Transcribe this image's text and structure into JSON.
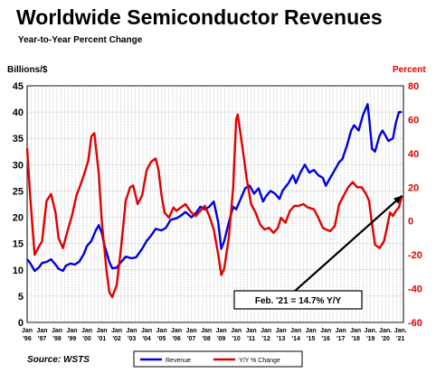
{
  "chart_data": {
    "type": "line",
    "title": "Worldwide Semiconductor Revenues",
    "subtitle": "Year-to-Year Percent Change",
    "ylabel_left": "Billions/$",
    "ylabel_right": "Percent",
    "source": "Source: WSTS",
    "left_axis": {
      "min": 0,
      "max": 45,
      "ticks": [
        0,
        5,
        10,
        15,
        20,
        25,
        30,
        35,
        40,
        45
      ]
    },
    "right_axis": {
      "min": -60,
      "max": 80,
      "ticks": [
        -60,
        -40,
        -20,
        0,
        20,
        40,
        60,
        80
      ]
    },
    "x_range": [
      1996.0,
      2021.2
    ],
    "grid": true,
    "legend_position": "bottom-center",
    "xtick_labels": [
      {
        "x": 1996.0,
        "month": "Jan",
        "year": "'96"
      },
      {
        "x": 1997.0,
        "month": "Jan",
        "year": "'97"
      },
      {
        "x": 1998.0,
        "month": "Jan",
        "year": "'98"
      },
      {
        "x": 1999.0,
        "month": "Jan",
        "year": "'99"
      },
      {
        "x": 2000.0,
        "month": "Jan",
        "year": "'00"
      },
      {
        "x": 2001.0,
        "month": "Jan",
        "year": "'01"
      },
      {
        "x": 2002.0,
        "month": "Jan",
        "year": "'02"
      },
      {
        "x": 2003.0,
        "month": "Jan",
        "year": "'03"
      },
      {
        "x": 2004.0,
        "month": "Jan",
        "year": "'04"
      },
      {
        "x": 2005.0,
        "month": "Jan",
        "year": "'05"
      },
      {
        "x": 2006.0,
        "month": "Jan",
        "year": "'06"
      },
      {
        "x": 2007.0,
        "month": "Jan",
        "year": "'07"
      },
      {
        "x": 2008.0,
        "month": "Jan",
        "year": "'08"
      },
      {
        "x": 2009.0,
        "month": "Jan",
        "year": "'09"
      },
      {
        "x": 2010.0,
        "month": "Jan",
        "year": "'10"
      },
      {
        "x": 2011.0,
        "month": "Jan",
        "year": "'11"
      },
      {
        "x": 2012.0,
        "month": "Jan",
        "year": "'12"
      },
      {
        "x": 2013.0,
        "month": "Jan",
        "year": "'13"
      },
      {
        "x": 2014.0,
        "month": "Jan",
        "year": "'14"
      },
      {
        "x": 2015.0,
        "month": "Jan",
        "year": "'15"
      },
      {
        "x": 2016.0,
        "month": "Jan",
        "year": "'16"
      },
      {
        "x": 2017.0,
        "month": "Jan",
        "year": "'17"
      },
      {
        "x": 2018.0,
        "month": "Jan",
        "year": "'18"
      },
      {
        "x": 2019.0,
        "month": "Jan.",
        "year": "'19"
      },
      {
        "x": 2020.0,
        "month": "Jan.",
        "year": "'20"
      },
      {
        "x": 2021.0,
        "month": "Jan.",
        "year": "'21"
      }
    ],
    "series": [
      {
        "name": "Revenue",
        "axis": "left",
        "color": "#0000e0",
        "points": [
          [
            1996.0,
            12
          ],
          [
            1996.2,
            11.3
          ],
          [
            1996.5,
            9.8
          ],
          [
            1996.8,
            10.5
          ],
          [
            1997.0,
            11.3
          ],
          [
            1997.3,
            11.5
          ],
          [
            1997.6,
            12.0
          ],
          [
            1997.9,
            11.0
          ],
          [
            1998.1,
            10.2
          ],
          [
            1998.4,
            9.8
          ],
          [
            1998.6,
            10.8
          ],
          [
            1998.9,
            11.2
          ],
          [
            1999.2,
            11.0
          ],
          [
            1999.5,
            11.6
          ],
          [
            1999.8,
            13.0
          ],
          [
            2000.0,
            14.5
          ],
          [
            2000.3,
            15.5
          ],
          [
            2000.6,
            17.5
          ],
          [
            2000.8,
            18.5
          ],
          [
            2001.0,
            17.0
          ],
          [
            2001.2,
            14.5
          ],
          [
            2001.5,
            11.5
          ],
          [
            2001.7,
            10.3
          ],
          [
            2002.0,
            10.4
          ],
          [
            2002.3,
            11.5
          ],
          [
            2002.6,
            12.5
          ],
          [
            2003.0,
            12.2
          ],
          [
            2003.3,
            12.4
          ],
          [
            2003.7,
            14.0
          ],
          [
            2004.0,
            15.5
          ],
          [
            2004.3,
            16.5
          ],
          [
            2004.6,
            17.8
          ],
          [
            2005.0,
            17.5
          ],
          [
            2005.3,
            18.0
          ],
          [
            2005.6,
            19.5
          ],
          [
            2006.0,
            19.8
          ],
          [
            2006.3,
            20.3
          ],
          [
            2006.6,
            21.0
          ],
          [
            2007.0,
            20.0
          ],
          [
            2007.3,
            20.8
          ],
          [
            2007.6,
            22.0
          ],
          [
            2007.9,
            21.5
          ],
          [
            2008.2,
            22.0
          ],
          [
            2008.5,
            23.0
          ],
          [
            2008.8,
            19.0
          ],
          [
            2009.0,
            14.0
          ],
          [
            2009.2,
            15.5
          ],
          [
            2009.5,
            19.0
          ],
          [
            2009.8,
            22.0
          ],
          [
            2010.0,
            21.5
          ],
          [
            2010.3,
            23.5
          ],
          [
            2010.6,
            25.5
          ],
          [
            2010.9,
            26.0
          ],
          [
            2011.2,
            24.5
          ],
          [
            2011.5,
            25.5
          ],
          [
            2011.8,
            23.0
          ],
          [
            2012.0,
            24.0
          ],
          [
            2012.3,
            25.0
          ],
          [
            2012.6,
            24.5
          ],
          [
            2012.9,
            23.5
          ],
          [
            2013.1,
            25.0
          ],
          [
            2013.5,
            26.5
          ],
          [
            2013.8,
            28.0
          ],
          [
            2014.0,
            26.5
          ],
          [
            2014.3,
            28.5
          ],
          [
            2014.6,
            30.0
          ],
          [
            2014.9,
            28.5
          ],
          [
            2015.2,
            29.0
          ],
          [
            2015.5,
            28.0
          ],
          [
            2015.8,
            27.5
          ],
          [
            2016.0,
            26.0
          ],
          [
            2016.3,
            27.5
          ],
          [
            2016.6,
            29.0
          ],
          [
            2016.9,
            30.5
          ],
          [
            2017.1,
            31.0
          ],
          [
            2017.4,
            33.5
          ],
          [
            2017.7,
            36.5
          ],
          [
            2017.9,
            37.5
          ],
          [
            2018.2,
            36.5
          ],
          [
            2018.5,
            39.5
          ],
          [
            2018.8,
            41.5
          ],
          [
            2018.9,
            39.0
          ],
          [
            2019.1,
            33.0
          ],
          [
            2019.3,
            32.5
          ],
          [
            2019.6,
            35.5
          ],
          [
            2019.8,
            36.5
          ],
          [
            2020.0,
            35.5
          ],
          [
            2020.2,
            34.5
          ],
          [
            2020.5,
            35.0
          ],
          [
            2020.7,
            38.0
          ],
          [
            2020.9,
            40.0
          ],
          [
            2021.1,
            40.0
          ]
        ]
      },
      {
        "name": "Y/Y % Change",
        "axis": "right",
        "color": "#e00000",
        "points": [
          [
            1996.0,
            43
          ],
          [
            1996.2,
            15
          ],
          [
            1996.5,
            -20
          ],
          [
            1996.8,
            -15
          ],
          [
            1997.0,
            -12
          ],
          [
            1997.3,
            12
          ],
          [
            1997.6,
            16
          ],
          [
            1997.9,
            5
          ],
          [
            1998.1,
            -10
          ],
          [
            1998.4,
            -16
          ],
          [
            1998.7,
            -6
          ],
          [
            1999.0,
            3
          ],
          [
            1999.3,
            15
          ],
          [
            1999.6,
            22
          ],
          [
            1999.9,
            30
          ],
          [
            2000.1,
            36
          ],
          [
            2000.3,
            50
          ],
          [
            2000.5,
            52
          ],
          [
            2000.8,
            28
          ],
          [
            2001.0,
            0
          ],
          [
            2001.3,
            -28
          ],
          [
            2001.5,
            -42
          ],
          [
            2001.7,
            -45
          ],
          [
            2002.0,
            -38
          ],
          [
            2002.3,
            -15
          ],
          [
            2002.6,
            12
          ],
          [
            2002.9,
            20
          ],
          [
            2003.1,
            21
          ],
          [
            2003.4,
            10
          ],
          [
            2003.7,
            15
          ],
          [
            2004.0,
            30
          ],
          [
            2004.3,
            35
          ],
          [
            2004.6,
            37
          ],
          [
            2004.8,
            30
          ],
          [
            2005.0,
            15
          ],
          [
            2005.2,
            5
          ],
          [
            2005.5,
            2
          ],
          [
            2005.8,
            8
          ],
          [
            2006.0,
            6
          ],
          [
            2006.3,
            8
          ],
          [
            2006.6,
            10
          ],
          [
            2007.0,
            5
          ],
          [
            2007.3,
            3
          ],
          [
            2007.6,
            6
          ],
          [
            2007.9,
            9
          ],
          [
            2008.2,
            3
          ],
          [
            2008.5,
            -5
          ],
          [
            2008.8,
            -20
          ],
          [
            2009.0,
            -32
          ],
          [
            2009.2,
            -28
          ],
          [
            2009.5,
            -10
          ],
          [
            2009.8,
            20
          ],
          [
            2010.0,
            60
          ],
          [
            2010.1,
            63
          ],
          [
            2010.4,
            45
          ],
          [
            2010.7,
            25
          ],
          [
            2011.0,
            10
          ],
          [
            2011.3,
            5
          ],
          [
            2011.6,
            -2
          ],
          [
            2011.9,
            -5
          ],
          [
            2012.2,
            -4
          ],
          [
            2012.5,
            -7
          ],
          [
            2012.8,
            -4
          ],
          [
            2013.0,
            2
          ],
          [
            2013.3,
            -1
          ],
          [
            2013.6,
            6
          ],
          [
            2013.9,
            9
          ],
          [
            2014.2,
            9
          ],
          [
            2014.5,
            10
          ],
          [
            2014.8,
            8
          ],
          [
            2015.2,
            7
          ],
          [
            2015.5,
            2
          ],
          [
            2015.8,
            -4
          ],
          [
            2016.0,
            -5
          ],
          [
            2016.3,
            -6
          ],
          [
            2016.6,
            -3
          ],
          [
            2016.9,
            10
          ],
          [
            2017.2,
            15
          ],
          [
            2017.5,
            20
          ],
          [
            2017.8,
            23
          ],
          [
            2018.1,
            20
          ],
          [
            2018.4,
            20
          ],
          [
            2018.7,
            16
          ],
          [
            2018.9,
            12
          ],
          [
            2019.1,
            -2
          ],
          [
            2019.3,
            -14
          ],
          [
            2019.6,
            -16
          ],
          [
            2019.9,
            -12
          ],
          [
            2020.1,
            -4
          ],
          [
            2020.3,
            5
          ],
          [
            2020.5,
            3
          ],
          [
            2020.7,
            6
          ],
          [
            2020.9,
            8
          ],
          [
            2021.1,
            14.7
          ]
        ]
      }
    ],
    "annotation": {
      "text": "Feb. '21 = 14.7% Y/Y",
      "from": [
        2013.6,
        -44
      ],
      "to": [
        2021.1,
        15
      ]
    }
  }
}
